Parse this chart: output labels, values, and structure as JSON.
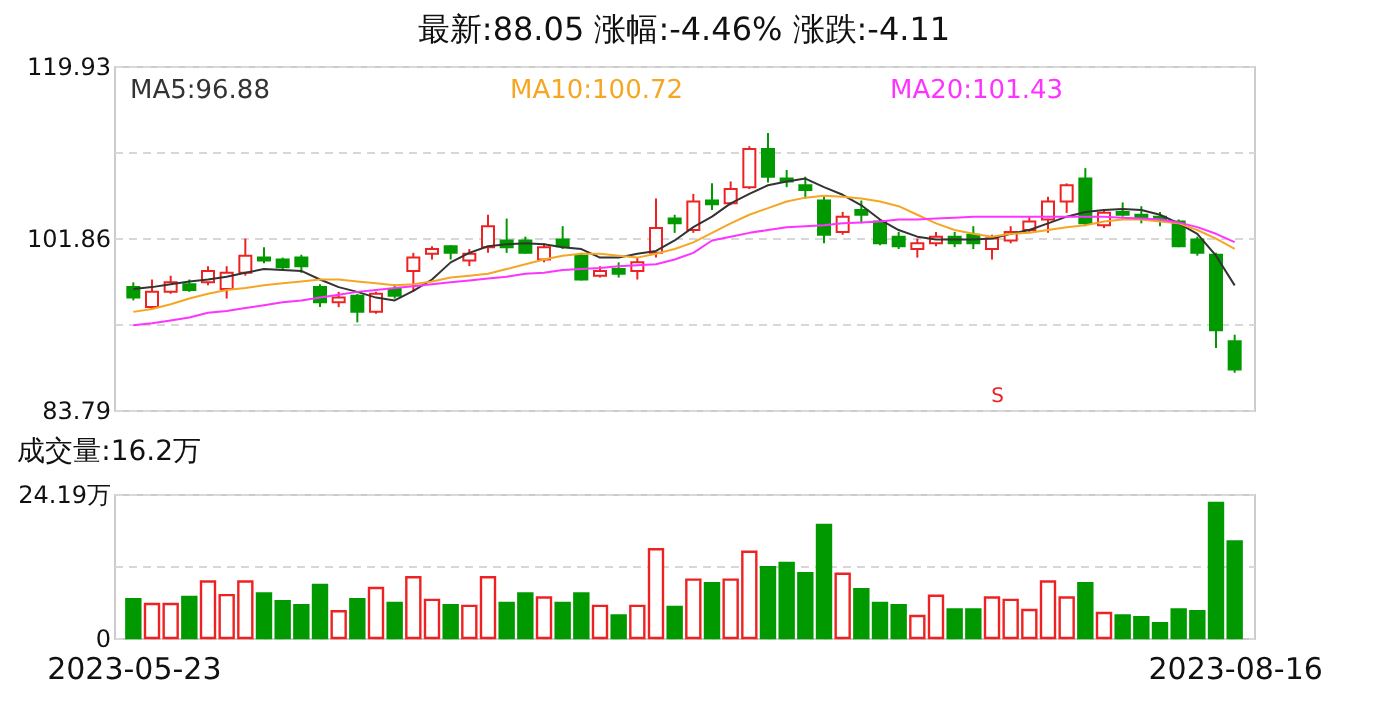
{
  "chart_data": [
    {
      "type": "candlestick",
      "title": "最新:88.05  涨幅:-4.46%  涨跌:-4.11",
      "categories": [
        "2023-05-23",
        null,
        null,
        null,
        null,
        null,
        null,
        null,
        null,
        null,
        null,
        null,
        null,
        null,
        null,
        null,
        null,
        null,
        null,
        null,
        null,
        null,
        null,
        null,
        null,
        null,
        null,
        null,
        null,
        null,
        null,
        null,
        null,
        null,
        null,
        null,
        null,
        null,
        null,
        null,
        null,
        null,
        null,
        null,
        null,
        null,
        null,
        null,
        null,
        null,
        null,
        null,
        null,
        null,
        null,
        null,
        null,
        null,
        null,
        "2023-08-16"
      ],
      "ohlc": [
        [
          96.7,
          97.2,
          95.3,
          95.6
        ],
        [
          94.6,
          97.5,
          94.4,
          96.2
        ],
        [
          96.2,
          97.9,
          96.0,
          97.2
        ],
        [
          97.0,
          97.5,
          96.2,
          96.4
        ],
        [
          97.2,
          98.9,
          96.9,
          98.4
        ],
        [
          96.5,
          98.9,
          95.5,
          98.2
        ],
        [
          98.2,
          101.8,
          97.9,
          100.0
        ],
        [
          99.8,
          100.9,
          99.2,
          99.5
        ],
        [
          99.6,
          99.8,
          98.4,
          98.8
        ],
        [
          99.8,
          100.1,
          98.2,
          98.9
        ],
        [
          96.7,
          97.0,
          94.6,
          95.1
        ],
        [
          95.1,
          96.2,
          94.6,
          95.6
        ],
        [
          95.8,
          96.0,
          93.0,
          94.1
        ],
        [
          94.1,
          96.2,
          93.9,
          96.0
        ],
        [
          96.5,
          97.0,
          95.5,
          95.8
        ],
        [
          98.4,
          100.3,
          96.2,
          99.8
        ],
        [
          100.2,
          101.0,
          99.6,
          100.7
        ],
        [
          101.0,
          101.1,
          99.6,
          100.3
        ],
        [
          99.5,
          100.7,
          98.9,
          100.2
        ],
        [
          100.9,
          104.3,
          100.3,
          103.1
        ],
        [
          101.6,
          103.9,
          100.3,
          100.9
        ],
        [
          101.6,
          102.0,
          100.2,
          100.3
        ],
        [
          99.6,
          101.3,
          99.3,
          100.9
        ],
        [
          101.7,
          103.1,
          100.7,
          101.0
        ],
        [
          100.0,
          100.3,
          97.4,
          97.5
        ],
        [
          97.9,
          98.9,
          97.7,
          98.4
        ],
        [
          98.6,
          99.3,
          97.7,
          98.1
        ],
        [
          98.4,
          99.8,
          97.5,
          99.3
        ],
        [
          100.3,
          106.0,
          99.8,
          102.9
        ],
        [
          103.9,
          104.3,
          102.4,
          103.4
        ],
        [
          102.7,
          106.5,
          102.4,
          105.7
        ],
        [
          105.8,
          107.6,
          104.8,
          105.4
        ],
        [
          105.5,
          107.8,
          105.3,
          107.0
        ],
        [
          107.2,
          111.5,
          107.0,
          111.2
        ],
        [
          111.2,
          112.9,
          107.7,
          108.3
        ],
        [
          108.1,
          109.0,
          107.2,
          107.8
        ],
        [
          107.4,
          108.3,
          106.0,
          106.9
        ],
        [
          105.8,
          106.2,
          101.3,
          102.2
        ],
        [
          102.5,
          104.6,
          102.2,
          104.1
        ],
        [
          104.8,
          105.8,
          103.4,
          104.3
        ],
        [
          103.6,
          103.8,
          101.1,
          101.3
        ],
        [
          102.0,
          102.5,
          100.7,
          101.0
        ],
        [
          100.7,
          101.8,
          99.8,
          101.3
        ],
        [
          101.3,
          102.5,
          101.0,
          102.0
        ],
        [
          102.0,
          102.5,
          100.9,
          101.3
        ],
        [
          102.2,
          103.1,
          100.7,
          101.3
        ],
        [
          100.7,
          102.2,
          99.6,
          101.8
        ],
        [
          101.6,
          103.1,
          101.3,
          102.5
        ],
        [
          102.7,
          104.1,
          102.5,
          103.6
        ],
        [
          103.8,
          106.2,
          102.4,
          105.7
        ],
        [
          105.7,
          107.6,
          104.5,
          107.4
        ],
        [
          108.1,
          109.2,
          103.1,
          103.4
        ],
        [
          103.2,
          104.8,
          102.9,
          104.5
        ],
        [
          104.6,
          105.6,
          104.1,
          104.3
        ],
        [
          104.3,
          105.2,
          103.4,
          104.0
        ],
        [
          104.1,
          104.6,
          103.1,
          103.8
        ],
        [
          103.6,
          103.8,
          100.9,
          101.0
        ],
        [
          101.7,
          102.0,
          100.0,
          100.3
        ],
        [
          100.1,
          100.3,
          90.3,
          92.16
        ],
        [
          91.0,
          91.7,
          87.7,
          88.05
        ]
      ],
      "colors": [
        "#009a00",
        "#ee2222",
        "#ee2222",
        "#009a00",
        "#ee2222",
        "#ee2222",
        "#ee2222",
        "#009a00",
        "#009a00",
        "#009a00",
        "#009a00",
        "#ee2222",
        "#009a00",
        "#ee2222",
        "#009a00",
        "#ee2222",
        "#ee2222",
        "#009a00",
        "#ee2222",
        "#ee2222",
        "#009a00",
        "#009a00",
        "#ee2222",
        "#009a00",
        "#009a00",
        "#ee2222",
        "#009a00",
        "#ee2222",
        "#ee2222",
        "#009a00",
        "#ee2222",
        "#009a00",
        "#ee2222",
        "#ee2222",
        "#009a00",
        "#009a00",
        "#009a00",
        "#009a00",
        "#ee2222",
        "#009a00",
        "#009a00",
        "#009a00",
        "#ee2222",
        "#ee2222",
        "#009a00",
        "#009a00",
        "#ee2222",
        "#ee2222",
        "#ee2222",
        "#ee2222",
        "#ee2222",
        "#009a00",
        "#ee2222",
        "#009a00",
        "#009a00",
        "#009a00",
        "#009a00",
        "#009a00",
        "#009a00",
        "#009a00"
      ],
      "series": [
        {
          "name": "MA5:96.88",
          "type": "line",
          "color": "#333333",
          "values": [
            96.5,
            96.7,
            97.0,
            97.3,
            97.5,
            97.8,
            98.2,
            98.6,
            98.5,
            98.4,
            97.5,
            96.7,
            96.2,
            95.6,
            95.3,
            96.3,
            97.5,
            99.3,
            100.3,
            101.0,
            101.2,
            101.3,
            101.2,
            100.9,
            100.7,
            99.8,
            99.8,
            100.2,
            100.5,
            101.6,
            103.0,
            104.1,
            105.5,
            106.5,
            107.4,
            107.8,
            108.1,
            107.2,
            106.4,
            105.3,
            103.8,
            102.7,
            102.0,
            101.7,
            101.7,
            101.7,
            101.8,
            102.3,
            102.7,
            103.4,
            104.1,
            104.6,
            104.8,
            104.9,
            104.8,
            104.3,
            103.4,
            102.3,
            100.0,
            96.88
          ]
        },
        {
          "name": "MA10:100.72",
          "type": "line",
          "color": "#f5a623",
          "values": [
            94.1,
            94.4,
            94.9,
            95.5,
            96.0,
            96.4,
            96.6,
            96.9,
            97.1,
            97.3,
            97.5,
            97.5,
            97.3,
            97.1,
            96.9,
            97.0,
            97.3,
            97.7,
            97.9,
            98.1,
            98.6,
            99.1,
            99.6,
            100.0,
            100.2,
            100.2,
            100.0,
            99.8,
            100.2,
            100.7,
            101.4,
            102.4,
            103.4,
            104.3,
            105.0,
            105.7,
            106.1,
            106.3,
            106.2,
            106.0,
            105.7,
            105.2,
            104.3,
            103.4,
            102.7,
            102.3,
            102.0,
            102.3,
            102.4,
            102.7,
            103.0,
            103.2,
            103.6,
            103.8,
            103.8,
            103.6,
            103.4,
            102.7,
            101.8,
            100.72
          ]
        },
        {
          "name": "MA20:101.43",
          "type": "line",
          "color": "#ff33ff",
          "values": [
            92.7,
            92.9,
            93.2,
            93.5,
            94.0,
            94.2,
            94.5,
            94.8,
            95.1,
            95.3,
            95.6,
            95.9,
            96.2,
            96.4,
            96.6,
            96.8,
            97.0,
            97.2,
            97.4,
            97.6,
            97.8,
            98.1,
            98.2,
            98.5,
            98.6,
            98.7,
            98.9,
            99.0,
            99.1,
            99.6,
            100.3,
            101.6,
            102.0,
            102.4,
            102.7,
            103.0,
            103.1,
            103.2,
            103.4,
            103.5,
            103.6,
            103.8,
            103.8,
            103.9,
            104.0,
            104.1,
            104.1,
            104.1,
            104.1,
            104.1,
            104.1,
            104.1,
            104.1,
            104.0,
            103.9,
            103.8,
            103.5,
            103.0,
            102.3,
            101.43
          ]
        }
      ],
      "ylim": [
        83.79,
        119.93
      ],
      "yticks": [
        83.79,
        {
          "value": 92.825,
          "label": null
        },
        101.86,
        {
          "value": 110.895,
          "label": null
        },
        119.93
      ],
      "grid": "y",
      "legend": "top",
      "tick_labels": "y",
      "annotations": [
        "S"
      ]
    },
    {
      "type": "bar",
      "title": "成交量:16.2万",
      "categories": [
        "2023-05-23",
        null,
        null,
        null,
        null,
        null,
        null,
        null,
        null,
        null,
        null,
        null,
        null,
        null,
        null,
        null,
        null,
        null,
        null,
        null,
        null,
        null,
        null,
        null,
        null,
        null,
        null,
        null,
        null,
        null,
        null,
        null,
        null,
        null,
        null,
        null,
        null,
        null,
        null,
        null,
        null,
        null,
        null,
        null,
        null,
        null,
        null,
        null,
        null,
        null,
        null,
        null,
        null,
        null,
        null,
        null,
        null,
        null,
        null,
        "2023-08-16"
      ],
      "values": [
        6.5,
        5.7,
        5.7,
        6.9,
        9.5,
        7.2,
        9.5,
        7.5,
        6.2,
        5.5,
        8.9,
        4.5,
        6.5,
        8.4,
        5.9,
        10.2,
        6.4,
        5.5,
        5.4,
        10.2,
        5.9,
        7.5,
        6.8,
        5.9,
        7.5,
        5.4,
        3.8,
        5.4,
        14.9,
        5.2,
        9.8,
        9.2,
        9.8,
        14.5,
        11.9,
        12.6,
        10.9,
        19.0,
        10.8,
        8.2,
        5.9,
        5.5,
        3.7,
        7.1,
        4.8,
        4.8,
        6.8,
        6.4,
        4.7,
        9.5,
        6.8,
        9.2,
        4.2,
        3.8,
        3.5,
        2.5,
        4.8,
        4.5,
        22.7,
        16.2
      ],
      "colors": [
        "#009a00",
        "#ee2222",
        "#ee2222",
        "#009a00",
        "#ee2222",
        "#ee2222",
        "#ee2222",
        "#009a00",
        "#009a00",
        "#009a00",
        "#009a00",
        "#ee2222",
        "#009a00",
        "#ee2222",
        "#009a00",
        "#ee2222",
        "#ee2222",
        "#009a00",
        "#ee2222",
        "#ee2222",
        "#009a00",
        "#009a00",
        "#ee2222",
        "#009a00",
        "#009a00",
        "#ee2222",
        "#009a00",
        "#ee2222",
        "#ee2222",
        "#009a00",
        "#ee2222",
        "#009a00",
        "#ee2222",
        "#ee2222",
        "#009a00",
        "#009a00",
        "#009a00",
        "#009a00",
        "#ee2222",
        "#009a00",
        "#009a00",
        "#009a00",
        "#ee2222",
        "#ee2222",
        "#009a00",
        "#009a00",
        "#ee2222",
        "#ee2222",
        "#ee2222",
        "#ee2222",
        "#ee2222",
        "#009a00",
        "#ee2222",
        "#009a00",
        "#009a00",
        "#009a00",
        "#009a00",
        "#009a00",
        "#009a00",
        "#009a00"
      ],
      "ylim": [
        0,
        24.19
      ],
      "yticks": [
        0,
        {
          "value": 12.095,
          "label": null
        },
        {
          "value": 24.19,
          "label": "24.19万"
        }
      ],
      "grid": "y"
    }
  ]
}
